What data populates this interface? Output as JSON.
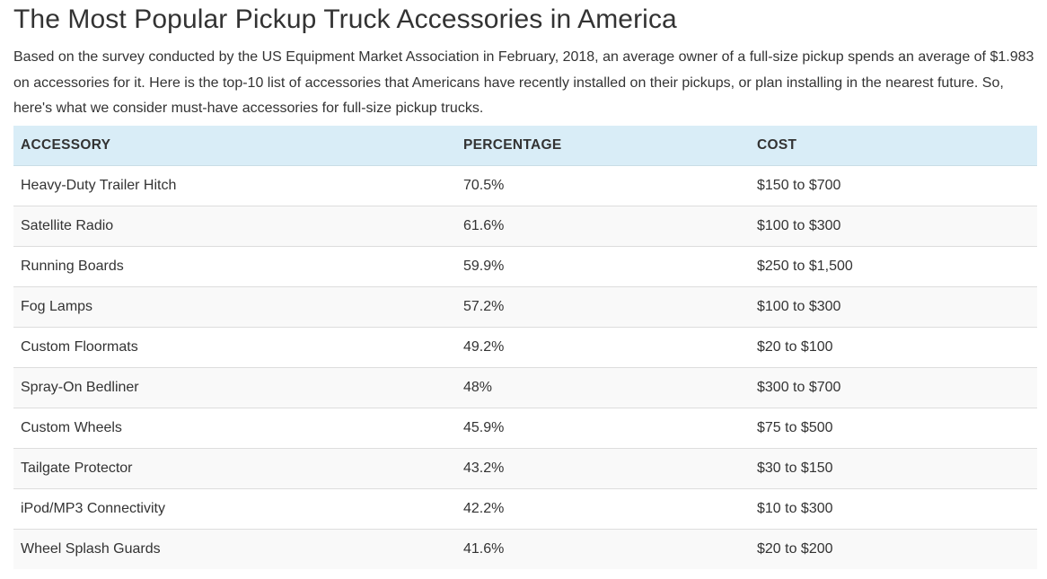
{
  "title": "The Most Popular Pickup Truck Accessories in America",
  "intro": "Based on the survey conducted by the US Equipment Market Association in February, 2018, an average owner of a full-size pickup spends an average of $1.983 on accessories for it. Here is the top-10 list of accessories that Americans have recently installed on their pickups, or plan installing in the nearest future. So, here's what we consider must-have accessories for full-size pickup trucks.",
  "table": {
    "headers": {
      "accessory": "ACCESSORY",
      "percentage": "PERCENTAGE",
      "cost": "COST"
    },
    "rows": [
      {
        "accessory": "Heavy-Duty Trailer Hitch",
        "percentage": "70.5%",
        "cost": "$150 to $700"
      },
      {
        "accessory": "Satellite Radio",
        "percentage": "61.6%",
        "cost": "$100 to $300"
      },
      {
        "accessory": "Running Boards",
        "percentage": "59.9%",
        "cost": "$250 to $1,500"
      },
      {
        "accessory": "Fog Lamps",
        "percentage": "57.2%",
        "cost": "$100 to $300"
      },
      {
        "accessory": "Custom Floormats",
        "percentage": "49.2%",
        "cost": "$20 to $100"
      },
      {
        "accessory": "Spray-On Bedliner",
        "percentage": "48%",
        "cost": "$300 to $700"
      },
      {
        "accessory": "Custom Wheels",
        "percentage": "45.9%",
        "cost": "$75 to $500"
      },
      {
        "accessory": "Tailgate Protector",
        "percentage": "43.2%",
        "cost": "$30 to $150"
      },
      {
        "accessory": "iPod/MP3 Connectivity",
        "percentage": "42.2%",
        "cost": "$10 to $300"
      },
      {
        "accessory": "Wheel Splash Guards",
        "percentage": "41.6%",
        "cost": "$20 to $200"
      }
    ]
  },
  "colors": {
    "header_bg": "#d9edf7",
    "stripe_bg": "#f9f9f9",
    "text": "#333333"
  }
}
